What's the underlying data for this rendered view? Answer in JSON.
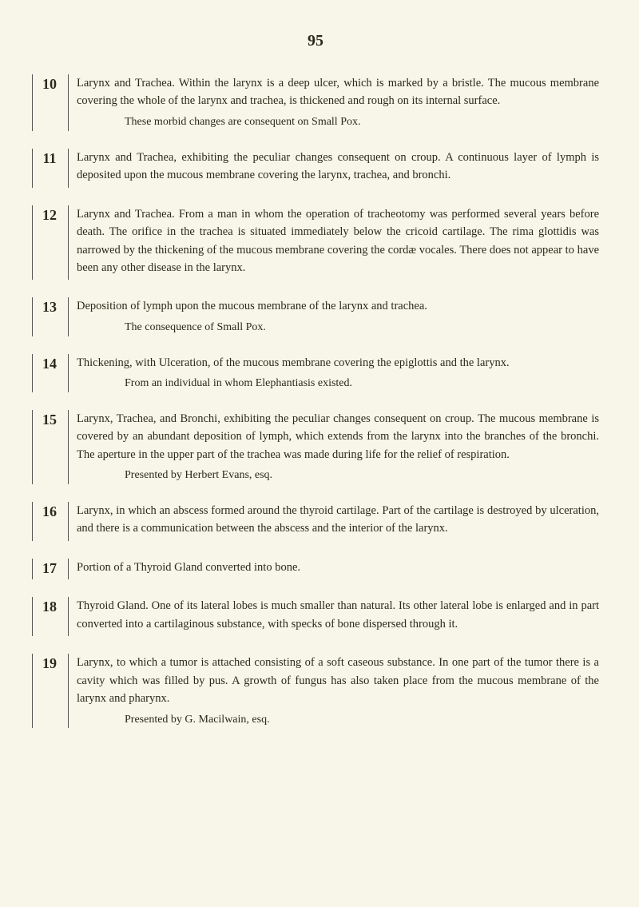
{
  "page_number": "95",
  "entries": [
    {
      "num": "10",
      "text": "Larynx and Trachea. Within the larynx is a deep ulcer, which is marked by a bristle. The mucous membrane covering the whole of the larynx and trachea, is thickened and rough on its internal surface.",
      "note": "These morbid changes are consequent on Small Pox."
    },
    {
      "num": "11",
      "text": "Larynx and Trachea, exhibiting the peculiar changes consequent on croup. A continuous layer of lymph is deposited upon the mucous membrane covering the larynx, trachea, and bronchi.",
      "note": ""
    },
    {
      "num": "12",
      "text": "Larynx and Trachea. From a man in whom the operation of tracheotomy was performed several years before death. The orifice in the trachea is situated immediately below the cricoid cartilage. The rima glottidis was narrowed by the thickening of the mucous membrane covering the cordæ vocales. There does not appear to have been any other disease in the larynx.",
      "note": ""
    },
    {
      "num": "13",
      "text": "Deposition of lymph upon the mucous membrane of the larynx and trachea.",
      "note": "The consequence of Small Pox."
    },
    {
      "num": "14",
      "text": "Thickening, with Ulceration, of the mucous membrane covering the epiglottis and the larynx.",
      "note": "From an individual in whom Elephantiasis existed."
    },
    {
      "num": "15",
      "text": "Larynx, Trachea, and Bronchi, exhibiting the peculiar changes consequent on croup. The mucous membrane is covered by an abundant deposition of lymph, which extends from the larynx into the branches of the bronchi. The aperture in the upper part of the trachea was made during life for the relief of respiration.",
      "note": "Presented by Herbert Evans, esq."
    },
    {
      "num": "16",
      "text": "Larynx, in which an abscess formed around the thyroid cartilage. Part of the cartilage is destroyed by ulceration, and there is a communication between the abscess and the interior of the larynx.",
      "note": ""
    },
    {
      "num": "17",
      "text": "Portion of a Thyroid Gland converted into bone.",
      "note": ""
    },
    {
      "num": "18",
      "text": "Thyroid Gland. One of its lateral lobes is much smaller than natural. Its other lateral lobe is enlarged and in part converted into a cartilaginous substance, with specks of bone dispersed through it.",
      "note": ""
    },
    {
      "num": "19",
      "text": "Larynx, to which a tumor is attached consisting of a soft caseous substance. In one part of the tumor there is a cavity which was filled by pus. A growth of fungus has also taken place from the mucous membrane of the larynx and pharynx.",
      "note": "Presented by G. Macilwain, esq."
    }
  ]
}
